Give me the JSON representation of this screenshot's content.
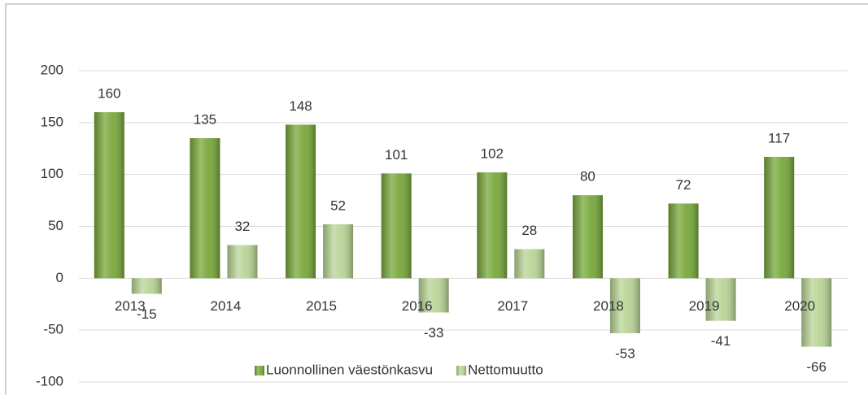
{
  "chart_data": {
    "type": "bar",
    "categories": [
      "2013",
      "2014",
      "2015",
      "2016",
      "2017",
      "2018",
      "2019",
      "2020"
    ],
    "series": [
      {
        "name": "Luonnollinen väestönkasvu",
        "color": "#78a83a",
        "values": [
          160,
          135,
          148,
          101,
          102,
          80,
          72,
          117
        ]
      },
      {
        "name": "Nettomuutto",
        "color": "#b9d496",
        "values": [
          -15,
          32,
          52,
          -33,
          28,
          -53,
          -41,
          -66
        ]
      }
    ],
    "ylim": [
      -100,
      200
    ],
    "yticks": [
      -100,
      -50,
      0,
      50,
      100,
      150,
      200
    ],
    "grid": true,
    "legend": "bottom"
  }
}
